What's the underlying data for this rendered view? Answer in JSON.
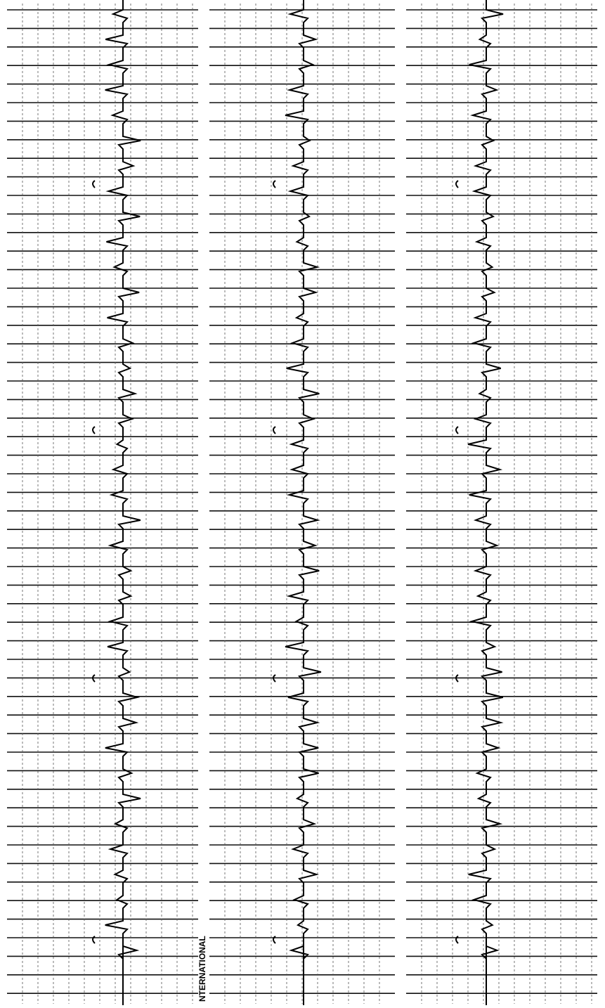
{
  "strip": {
    "label": "NTERNATIONAL"
  }
}
